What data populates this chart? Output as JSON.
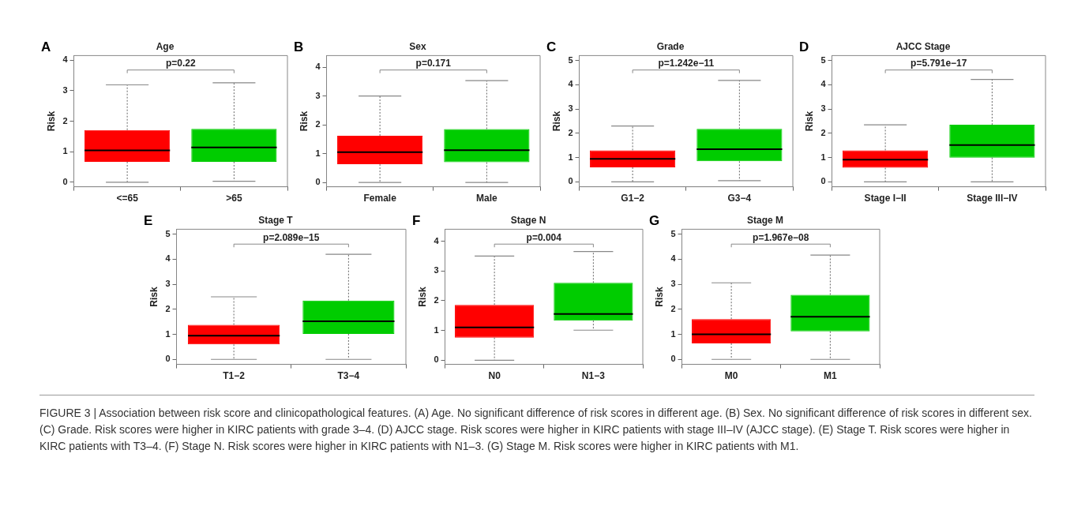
{
  "chart_data": [
    {
      "type": "box",
      "title": "Age",
      "ylabel": "Risk",
      "categories": [
        "<=65",
        ">65"
      ],
      "colors": [
        "#ff0000",
        "#00cc00"
      ],
      "ylim": [
        -0.15,
        4.15
      ],
      "yticks": [
        0,
        1,
        2,
        3,
        4
      ],
      "annotations": [
        "A",
        "p=0.22"
      ],
      "boxes": [
        {
          "low": 0,
          "q1": 0.67,
          "median": 1.04,
          "q3": 1.71,
          "high": 3.19
        },
        {
          "low": 0.03,
          "q1": 0.67,
          "median": 1.14,
          "q3": 1.75,
          "high": 3.26
        }
      ]
    },
    {
      "type": "box",
      "title": "Sex",
      "ylabel": "Risk",
      "categories": [
        "Female",
        "Male"
      ],
      "colors": [
        "#ff0000",
        "#00cc00"
      ],
      "ylim": [
        -0.15,
        4.4
      ],
      "yticks": [
        0,
        1,
        2,
        3,
        4
      ],
      "annotations": [
        "B",
        "p=0.171"
      ],
      "boxes": [
        {
          "low": 0,
          "q1": 0.63,
          "median": 1.05,
          "q3": 1.62,
          "high": 3.0
        },
        {
          "low": 0,
          "q1": 0.7,
          "median": 1.12,
          "q3": 1.85,
          "high": 3.53
        }
      ]
    },
    {
      "type": "box",
      "title": "Grade",
      "ylabel": "Risk",
      "categories": [
        "G1−2",
        "G3−4"
      ],
      "colors": [
        "#ff0000",
        "#00cc00"
      ],
      "ylim": [
        -0.2,
        5.2
      ],
      "yticks": [
        0,
        1,
        2,
        3,
        4,
        5
      ],
      "annotations": [
        "C",
        "p=1.242e−11"
      ],
      "boxes": [
        {
          "low": 0,
          "q1": 0.6,
          "median": 0.95,
          "q3": 1.3,
          "high": 2.3
        },
        {
          "low": 0.05,
          "q1": 0.85,
          "median": 1.35,
          "q3": 2.18,
          "high": 4.18
        }
      ]
    },
    {
      "type": "box",
      "title": "AJCC Stage",
      "ylabel": "Risk",
      "categories": [
        "Stage I−II",
        "Stage III−IV"
      ],
      "colors": [
        "#ff0000",
        "#00cc00"
      ],
      "ylim": [
        -0.2,
        5.2
      ],
      "yticks": [
        0,
        1,
        2,
        3,
        4,
        5
      ],
      "annotations": [
        "D",
        "p=5.791e−17"
      ],
      "boxes": [
        {
          "low": 0,
          "q1": 0.58,
          "median": 0.92,
          "q3": 1.3,
          "high": 2.35
        },
        {
          "low": 0,
          "q1": 1.0,
          "median": 1.52,
          "q3": 2.35,
          "high": 4.22
        }
      ]
    },
    {
      "type": "box",
      "title": "Stage T",
      "ylabel": "Risk",
      "categories": [
        "T1−2",
        "T3−4"
      ],
      "colors": [
        "#ff0000",
        "#00cc00"
      ],
      "ylim": [
        -0.2,
        5.2
      ],
      "yticks": [
        0,
        1,
        2,
        3,
        4,
        5
      ],
      "annotations": [
        "E",
        "p=2.089e−15"
      ],
      "boxes": [
        {
          "low": 0,
          "q1": 0.6,
          "median": 0.95,
          "q3": 1.38,
          "high": 2.5
        },
        {
          "low": 0,
          "q1": 1.02,
          "median": 1.52,
          "q3": 2.35,
          "high": 4.2
        }
      ]
    },
    {
      "type": "box",
      "title": "Stage N",
      "ylabel": "Risk",
      "categories": [
        "N0",
        "N1−3"
      ],
      "colors": [
        "#ff0000",
        "#00cc00"
      ],
      "ylim": [
        -0.14,
        4.4
      ],
      "yticks": [
        0,
        1,
        2,
        3,
        4
      ],
      "annotations": [
        "F",
        "p=0.004"
      ],
      "boxes": [
        {
          "low": 0,
          "q1": 0.76,
          "median": 1.1,
          "q3": 1.86,
          "high": 3.5
        },
        {
          "low": 1.01,
          "q1": 1.33,
          "median": 1.55,
          "q3": 2.6,
          "high": 3.65
        }
      ]
    },
    {
      "type": "box",
      "title": "Stage M",
      "ylabel": "Risk",
      "categories": [
        "M0",
        "M1"
      ],
      "colors": [
        "#ff0000",
        "#00cc00"
      ],
      "ylim": [
        -0.2,
        5.2
      ],
      "yticks": [
        0,
        1,
        2,
        3,
        4,
        5
      ],
      "annotations": [
        "G",
        "p=1.967e−08"
      ],
      "boxes": [
        {
          "low": 0,
          "q1": 0.64,
          "median": 1.0,
          "q3": 1.61,
          "high": 3.06
        },
        {
          "low": 0,
          "q1": 1.12,
          "median": 1.7,
          "q3": 2.58,
          "high": 4.17
        }
      ]
    },
    {
      "type": "other",
      "annotations": [
        "FIGURE 3 | Association between risk score and clinicopathological features. (A) Age. No significant difference of risk scores in different age. (B) Sex. No significant difference of risk scores in different sex. (C) Grade. Risk scores were higher in KIRC patients with grade 3–4. (D) AJCC stage. Risk scores were higher in KIRC patients with stage III–IV (AJCC stage). (E) Stage T. Risk scores were higher in KIRC patients with T3–4. (F) Stage N. Risk scores were higher in KIRC patients with N1–3. (G) Stage M. Risk scores were higher in KIRC patients with M1."
      ]
    }
  ]
}
